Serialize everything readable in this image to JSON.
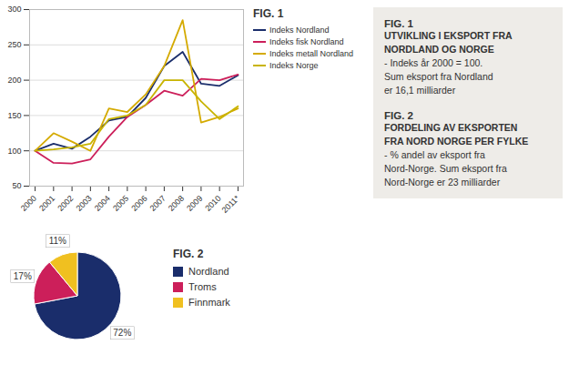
{
  "chart_data": [
    {
      "type": "line",
      "title": "FIG. 1",
      "annotations": [
        "UTVIKLING I EKSPORT FRA",
        "NORDLAND OG NORGE",
        "- Indeks år 2000 = 100.",
        "Sum eksport fra Nordland",
        "er 16,1 milliarder"
      ],
      "x": [
        2000,
        2001,
        2002,
        2003,
        2004,
        2005,
        2006,
        2007,
        2008,
        2009,
        2010,
        2011
      ],
      "xlim": [
        1999.7,
        2011.3
      ],
      "xticks": [
        2000,
        2001,
        2002,
        2003,
        2004,
        2005,
        2006,
        2007,
        2008,
        2009,
        2010,
        {
          "value": 2011,
          "label": "2011*"
        }
      ],
      "ylim": [
        50,
        300
      ],
      "yticks": [
        50,
        100,
        150,
        200,
        250,
        300
      ],
      "grid": true,
      "legend": "right",
      "series": [
        {
          "name": "Indeks Nordland",
          "color": "#1a2d6b",
          "values": [
            100,
            110,
            103,
            120,
            143,
            148,
            175,
            220,
            240,
            195,
            192,
            207
          ]
        },
        {
          "name": "Indeks fisk Nordland",
          "color": "#cc1f5a",
          "values": [
            100,
            83,
            82,
            88,
            120,
            148,
            165,
            185,
            178,
            202,
            200,
            208
          ]
        },
        {
          "name": "Indeks metall Nordland",
          "color": "#d4aa00",
          "values": [
            100,
            125,
            113,
            100,
            160,
            155,
            180,
            220,
            285,
            140,
            148,
            160
          ]
        },
        {
          "name": "Indeks Norge",
          "color": "#c8b400",
          "values": [
            100,
            102,
            105,
            110,
            145,
            150,
            165,
            200,
            200,
            170,
            145,
            163
          ]
        }
      ]
    },
    {
      "type": "pie",
      "title": "FIG. 2",
      "annotations": [
        "FORDELING AV EKSPORTEN",
        "FRA NORD NORGE PER FYLKE",
        "- % andel av eksport fra",
        "Nord-Norge. Sum eksport fra",
        "Nord-Norge er 23 milliarder"
      ],
      "categories": [
        "Nordland",
        "Troms",
        "Finnmark"
      ],
      "values": [
        72,
        17,
        11
      ],
      "value_labels": [
        "72%",
        "17%",
        "11%"
      ],
      "colors": [
        "#1a2d6b",
        "#cc1f5a",
        "#f0c020"
      ],
      "data_labels": true,
      "legend": "right"
    }
  ]
}
